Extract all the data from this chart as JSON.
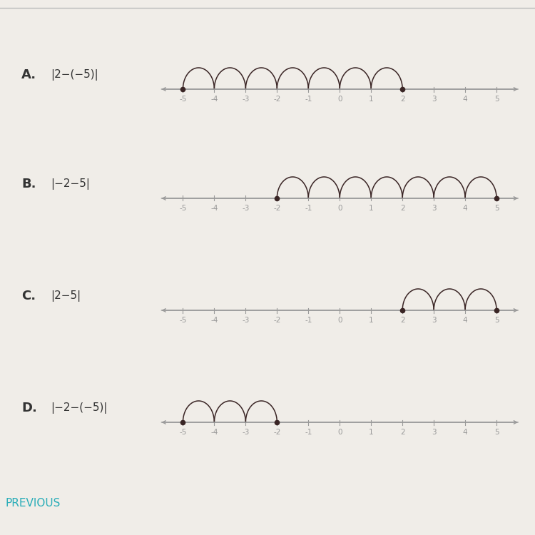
{
  "background_color": "#f0ede8",
  "options": [
    {
      "label": "A.",
      "equation": "|2−(−5)|",
      "dot1": -5,
      "dot2": 2,
      "arcs_from": -5,
      "arcs_to": 2,
      "arc_step": 1
    },
    {
      "label": "B.",
      "equation": "|−2−5|",
      "dot1": -2,
      "dot2": 5,
      "arcs_from": -2,
      "arcs_to": 5,
      "arc_step": 1
    },
    {
      "label": "C.",
      "equation": "|2−5|",
      "dot1": 2,
      "dot2": 5,
      "arcs_from": 2,
      "arcs_to": 5,
      "arc_step": 1
    },
    {
      "label": "D.",
      "equation": "|−2−(−5)|",
      "dot1": -5,
      "dot2": -2,
      "arcs_from": -5,
      "arcs_to": -2,
      "arc_step": 1
    }
  ],
  "axis_min": -5,
  "axis_max": 5,
  "tick_color": "#999999",
  "line_color": "#999999",
  "dot_color": "#3a2525",
  "arc_color": "#3a2525",
  "label_color": "#333333",
  "equation_color": "#333333",
  "previous_color": "#29adb8",
  "previous_text": "PREVIOUS",
  "top_border_color": "#bbbbbb"
}
